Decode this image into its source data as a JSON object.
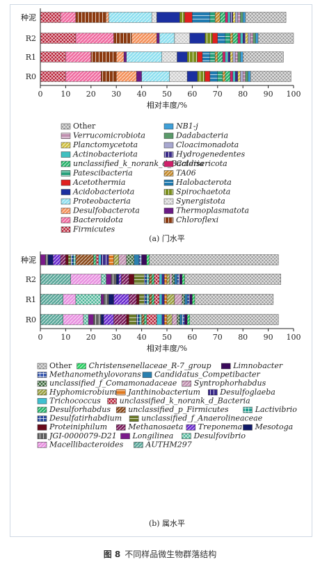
{
  "figure_caption": {
    "label": "图 8",
    "text": "不同样品微生物群落结构"
  },
  "chart_data": [
    {
      "type": "bar",
      "orientation": "horizontal",
      "stacked": true,
      "subcaption": "(a) 门水平",
      "xlabel": "相对丰度/%",
      "xlim": [
        0,
        100
      ],
      "xticks": [
        "0",
        "10",
        "20",
        "30",
        "40",
        "50",
        "60",
        "70",
        "80",
        "90",
        "100"
      ],
      "categories": [
        "种泥",
        "R2",
        "R1",
        "R0"
      ],
      "legend_placement": "bottom",
      "series": [
        {
          "name": "Firmicutes",
          "color": "#b3122a",
          "pattern": "cross",
          "values": [
            8,
            14,
            10,
            10
          ]
        },
        {
          "name": "Bacteroidota",
          "color": "#f06aa0",
          "pattern": "diag",
          "values": [
            6,
            15,
            10,
            14
          ]
        },
        {
          "name": "Chloroflexi",
          "color": "#8b3a10",
          "pattern": "vert",
          "values": [
            12,
            7,
            10,
            6
          ]
        },
        {
          "name": "Desulfobacterota",
          "color": "#f4915a",
          "pattern": "diag",
          "values": [
            1,
            10,
            3,
            8
          ]
        },
        {
          "name": "Thermoplasmatota",
          "color": "#6a1b86",
          "pattern": "none",
          "values": [
            0,
            1,
            1,
            2
          ]
        },
        {
          "name": "Proteobacteria",
          "color": "#8fe0f0",
          "pattern": "diag",
          "values": [
            17,
            6,
            14,
            11
          ]
        },
        {
          "name": "Synergistota",
          "color": "#c8c8c8",
          "pattern": "cross",
          "values": [
            2,
            6,
            6,
            7
          ]
        },
        {
          "name": "Acidobacteriota",
          "color": "#1b2fa0",
          "pattern": "none",
          "values": [
            9,
            6,
            4,
            4
          ]
        },
        {
          "name": "Spirochaetota",
          "color": "#7a8f1a",
          "pattern": "vert",
          "values": [
            2,
            3,
            4,
            3
          ]
        },
        {
          "name": "Acetothermia",
          "color": "#e02020",
          "pattern": "none",
          "values": [
            3,
            2,
            2,
            2
          ]
        },
        {
          "name": "Halobacterota",
          "color": "#1f7ab0",
          "pattern": "horiz",
          "values": [
            7,
            3,
            3,
            3
          ]
        },
        {
          "name": "Patescibacteria",
          "color": "#26a07a",
          "pattern": "horiz",
          "values": [
            2,
            2,
            2,
            2
          ]
        },
        {
          "name": "TA06",
          "color": "#c48a2a",
          "pattern": "diag",
          "values": [
            2,
            1,
            1,
            1
          ]
        },
        {
          "name": "unclassified_k_norank_d_Bacteria",
          "color": "#26b36a",
          "pattern": "diag",
          "values": [
            2,
            2,
            2,
            2
          ]
        },
        {
          "name": "Caldisericota",
          "color": "#d0206a",
          "pattern": "none",
          "values": [
            1,
            1,
            1,
            1
          ]
        },
        {
          "name": "Actinobacteriota",
          "color": "#40c0c0",
          "pattern": "none",
          "values": [
            1,
            1,
            1,
            1
          ]
        },
        {
          "name": "Hydrogenedentes",
          "color": "#3a2a8a",
          "pattern": "vert",
          "values": [
            1,
            1,
            1,
            1
          ]
        },
        {
          "name": "Planctomycetota",
          "color": "#d0c040",
          "pattern": "diag",
          "values": [
            1,
            1,
            1,
            1
          ]
        },
        {
          "name": "Cloacimonadota",
          "color": "#a8a8d0",
          "pattern": "none",
          "values": [
            1,
            1,
            1,
            1
          ]
        },
        {
          "name": "Verrucomicrobiota",
          "color": "#c090b0",
          "pattern": "horiz",
          "values": [
            1,
            1,
            1,
            1
          ]
        },
        {
          "name": "Dadabacteria",
          "color": "#5a9a6a",
          "pattern": "none",
          "values": [
            1,
            1,
            1,
            1
          ]
        },
        {
          "name": "NB1-j",
          "color": "#3fa0d8",
          "pattern": "none",
          "values": [
            1,
            1,
            1,
            1
          ]
        },
        {
          "name": "Other",
          "color": "#9a9a9a",
          "pattern": "cross",
          "values": [
            16,
            15,
            16,
            16
          ]
        }
      ],
      "legend_order": [
        "Other",
        "NB1-j",
        "Verrucomicrobiota",
        "Dadabacteria",
        "Planctomycetota",
        "Cloacimonadota",
        "Actinobacteriota",
        "Hydrogenedentes",
        "unclassified_k_norank_d_Bacteria",
        "Caldisericota",
        "Patescibacteria",
        "TA06",
        "Acetothermia",
        "Halobacterota",
        "Acidobacteriota",
        "Spirochaetota",
        "Proteobacteria",
        "Synergistota",
        "Desulfobacterota",
        "Thermoplasmatota",
        "Bacteroidota",
        "Chloroflexi",
        "Firmicutes"
      ]
    },
    {
      "type": "bar",
      "orientation": "horizontal",
      "stacked": true,
      "subcaption": "(b) 属水平",
      "xlabel": "相对丰度/%",
      "xlim": [
        0,
        100
      ],
      "xticks": [
        "0",
        "10",
        "20",
        "30",
        "40",
        "50",
        "60",
        "70",
        "80",
        "90",
        "100"
      ],
      "categories": [
        "种泥",
        "R2",
        "R1",
        "R0"
      ],
      "legend_placement": "bottom",
      "series": [
        {
          "name": "AUTHM297",
          "color": "#5aa89a",
          "pattern": "diag",
          "values": [
            0,
            12,
            9,
            9
          ]
        },
        {
          "name": "Macellibacteroides",
          "color": "#e890e0",
          "pattern": "diag",
          "values": [
            0,
            12,
            5,
            8
          ]
        },
        {
          "name": "Desulfovibrio",
          "color": "#40b090",
          "pattern": "cross",
          "values": [
            0,
            2,
            10,
            2
          ]
        },
        {
          "name": "Longilinea",
          "color": "#7a1a8a",
          "pattern": "none",
          "values": [
            2,
            2,
            1,
            2
          ]
        },
        {
          "name": "JGI-0000079-D21",
          "color": "#606060",
          "pattern": "vert",
          "values": [
            1,
            2,
            2,
            3
          ]
        },
        {
          "name": "Mesotoga",
          "color": "#101a6a",
          "pattern": "none",
          "values": [
            2,
            1,
            2,
            1
          ]
        },
        {
          "name": "Treponema",
          "color": "#6a2ad0",
          "pattern": "diag",
          "values": [
            3,
            1,
            6,
            4
          ]
        },
        {
          "name": "Methanosaeta",
          "color": "#7a1a5a",
          "pattern": "diag",
          "values": [
            2,
            3,
            3,
            5
          ]
        },
        {
          "name": "Proteiniphilum",
          "color": "#6a0a1a",
          "pattern": "none",
          "values": [
            1,
            2,
            1,
            1
          ]
        },
        {
          "name": "unclassified_f_Anaerolineaceae",
          "color": "#6a7a2a",
          "pattern": "horiz",
          "values": [
            1,
            4,
            2,
            3
          ]
        },
        {
          "name": "Desulfatirhabdium",
          "color": "#2a4aa0",
          "pattern": "grid",
          "values": [
            1,
            1,
            1,
            1
          ]
        },
        {
          "name": "Lactivibrio",
          "color": "#20a090",
          "pattern": "grid",
          "values": [
            1,
            1,
            1,
            1
          ]
        },
        {
          "name": "unclassified_p_Firmicutes",
          "color": "#8a4a1a",
          "pattern": "diag",
          "values": [
            7,
            1,
            1,
            1
          ]
        },
        {
          "name": "Desulforhabdus",
          "color": "#26b36a",
          "pattern": "diag",
          "values": [
            1,
            1,
            1,
            1
          ]
        },
        {
          "name": "unclassified_k_norank_d_Bacteria",
          "color": "#b3122a",
          "pattern": "cross",
          "values": [
            1,
            2,
            2,
            4
          ]
        },
        {
          "name": "Trichococcus",
          "color": "#40c0d0",
          "pattern": "none",
          "values": [
            1,
            1,
            1,
            2
          ]
        },
        {
          "name": "Desulfoglaeba",
          "color": "#3a2a8a",
          "pattern": "vert",
          "values": [
            3,
            1,
            1,
            1
          ]
        },
        {
          "name": "Janthinobacterium",
          "color": "#e07a20",
          "pattern": "horiz",
          "values": [
            2,
            1,
            1,
            1
          ]
        },
        {
          "name": "Hyphomicrobium",
          "color": "#9aa040",
          "pattern": "diag",
          "values": [
            2,
            1,
            3,
            2
          ]
        },
        {
          "name": "Syntrophorhabdus",
          "color": "#c090b0",
          "pattern": "diag",
          "values": [
            3,
            1,
            3,
            2
          ]
        },
        {
          "name": "unclassified_f_Comamonadaceae",
          "color": "#2a5a2a",
          "pattern": "cross",
          "values": [
            3,
            1,
            1,
            1
          ]
        },
        {
          "name": "Candidatus_Competibacter",
          "color": "#2a80b0",
          "pattern": "none",
          "values": [
            2,
            1,
            1,
            1
          ]
        },
        {
          "name": "Methanomethylovorans",
          "color": "#3a5ab0",
          "pattern": "grid",
          "values": [
            1,
            1,
            1,
            1
          ]
        },
        {
          "name": "Limnobacter",
          "color": "#3a0a5a",
          "pattern": "none",
          "values": [
            2,
            1,
            1,
            1
          ]
        },
        {
          "name": "Christensenellaceae_R-7_group",
          "color": "#26d060",
          "pattern": "diag",
          "values": [
            1,
            1,
            1,
            1
          ]
        },
        {
          "name": "Other",
          "color": "#9a9a9a",
          "pattern": "cross",
          "values": [
            51,
            38,
            31,
            35
          ]
        }
      ],
      "legend_order": [
        "Other",
        "Christensenellaceae_R-7_group",
        "Limnobacter",
        "Methanomethylovorans",
        "Candidatus_Competibacter",
        "unclassified_f_Comamonadaceae",
        "Syntrophorhabdus",
        "Hyphomicrobium",
        "Janthinobacterium",
        "Desulfoglaeba",
        "Trichococcus",
        "unclassified_k_norank_d_Bacteria",
        "Desulforhabdus",
        "unclassified_p_Firmicutes",
        "Lactivibrio",
        "Desulfatirhabdium",
        "unclassified_f_Anaerolineaceae",
        "Proteiniphilum",
        "Methanosaeta",
        "Treponema",
        "Mesotoga",
        "JGI-0000079-D21",
        "Longilinea",
        "Desulfovibrio",
        "Macellibacteroides",
        "AUTHM297"
      ]
    }
  ]
}
